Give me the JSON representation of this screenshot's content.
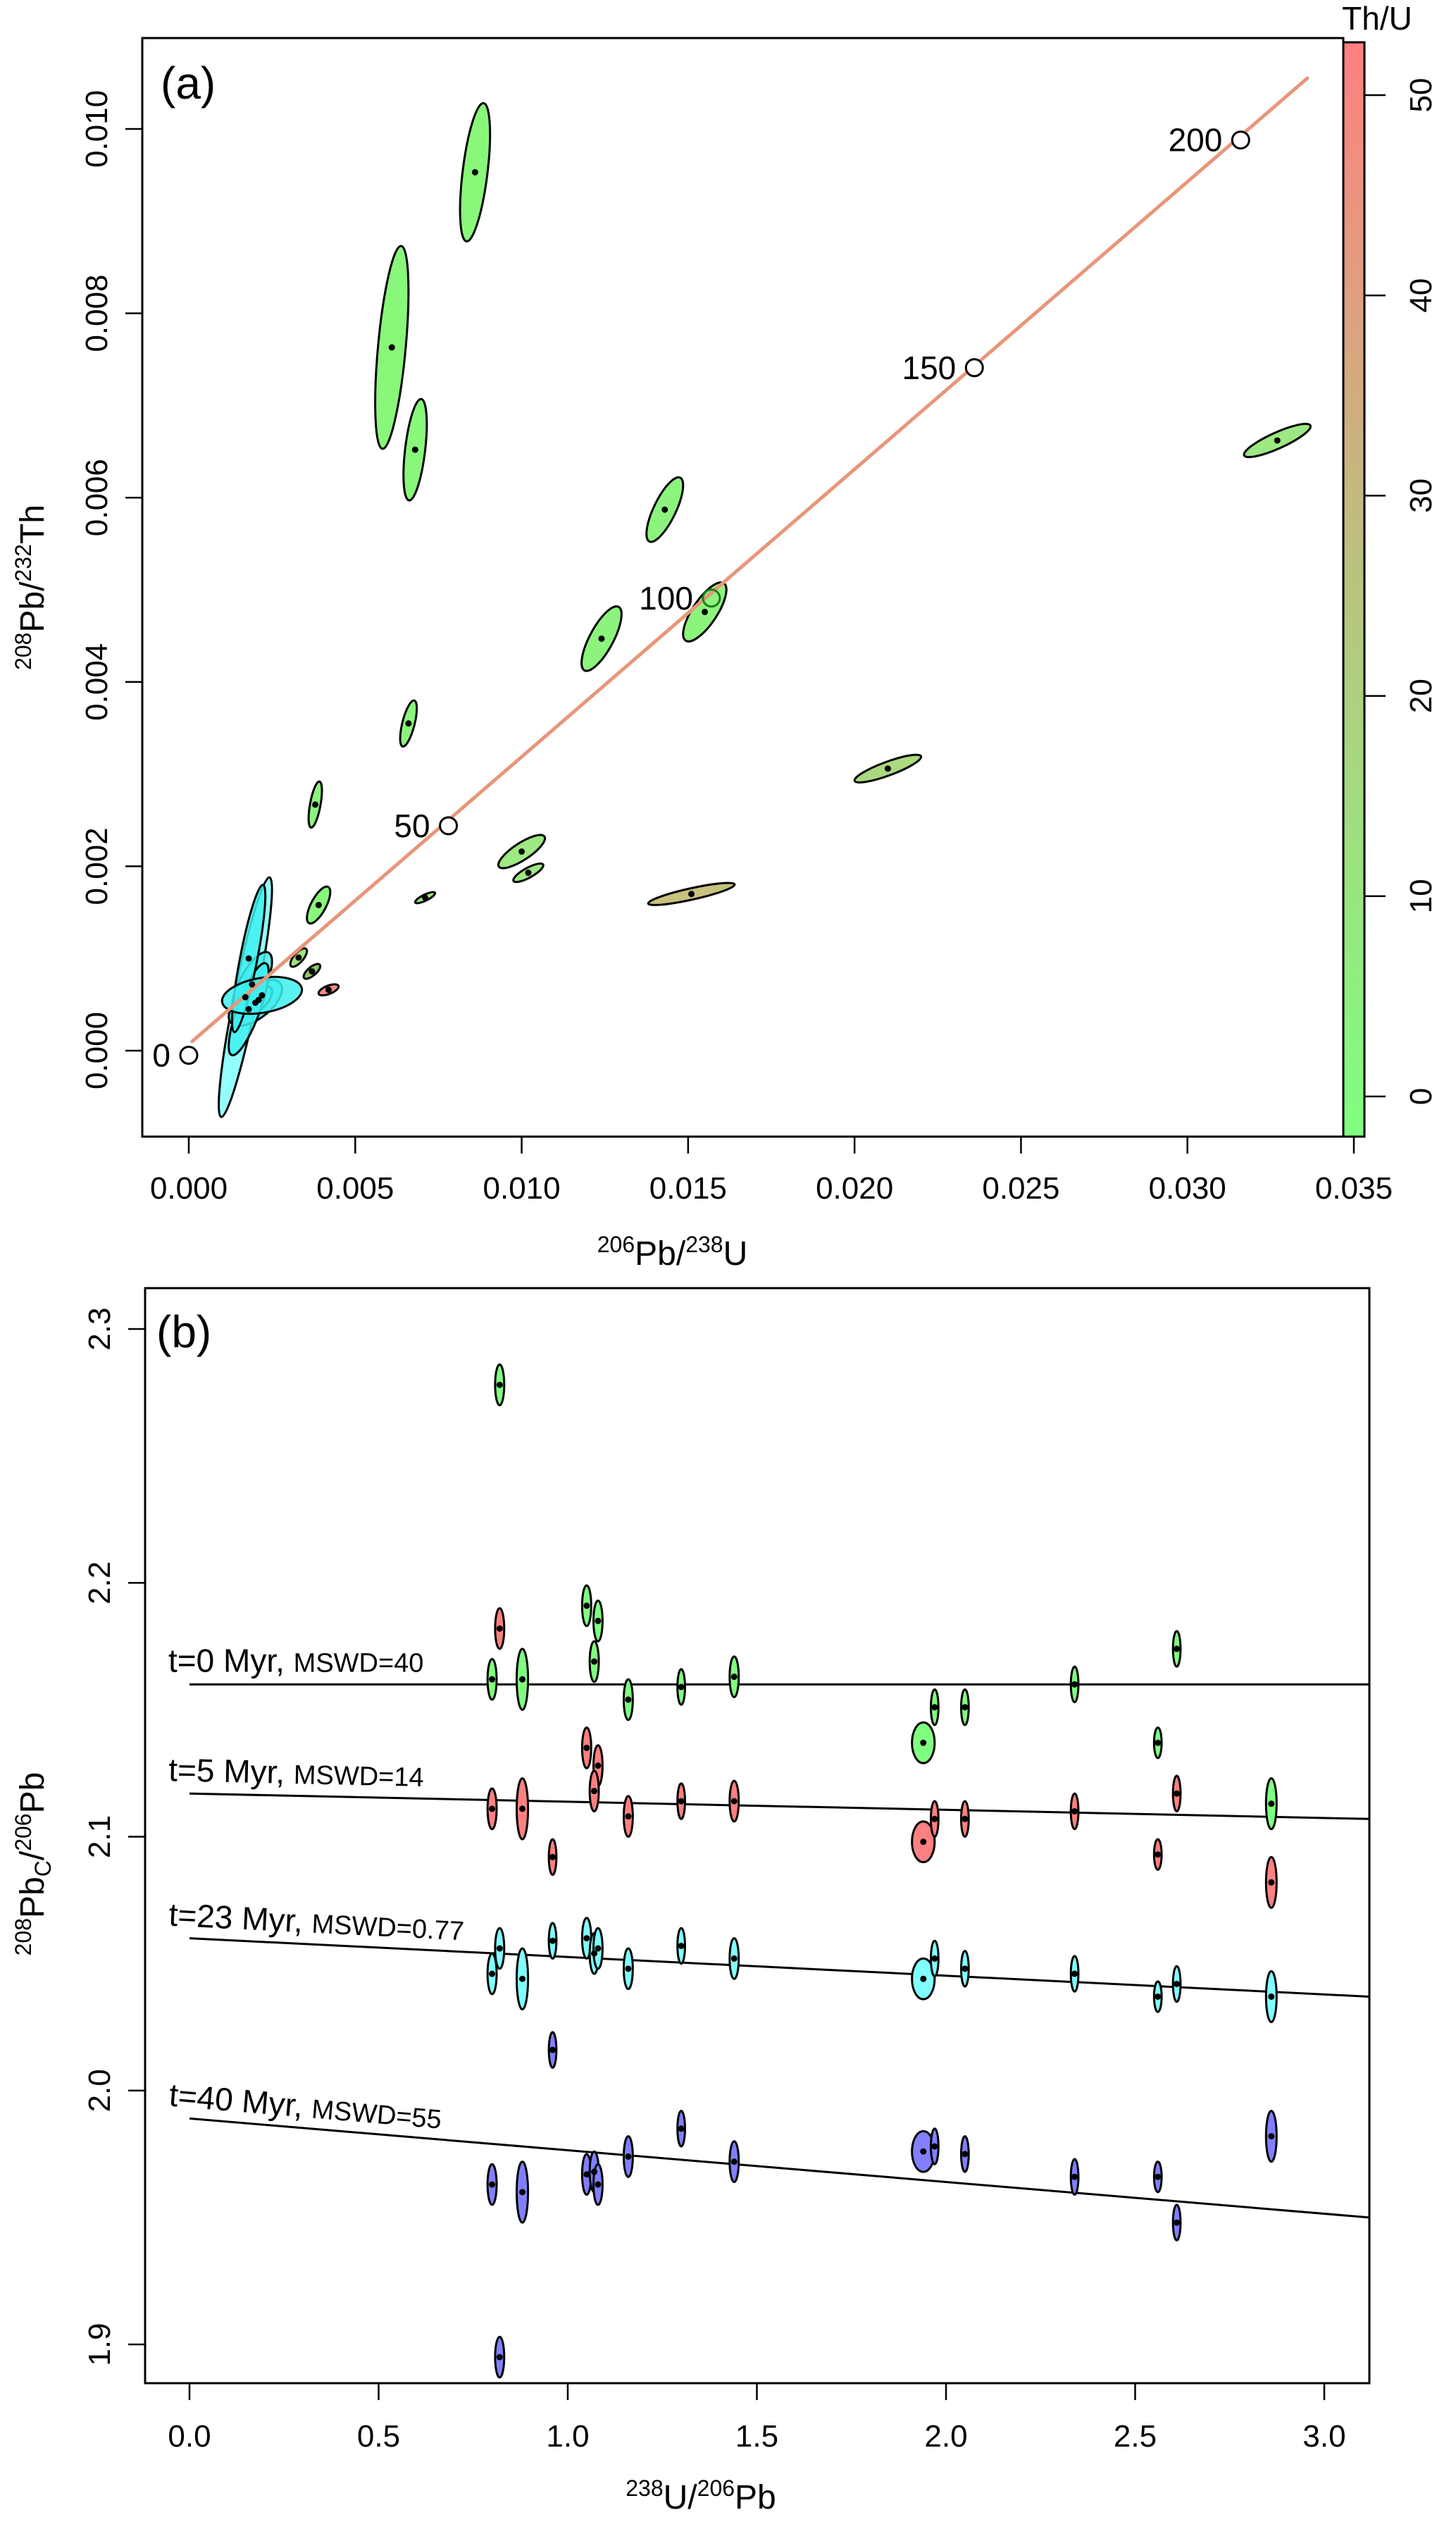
{
  "chart_data": [
    {
      "panel": "a",
      "type": "scatter",
      "panel_label": "(a)",
      "xlabel": {
        "sup1": "206",
        "base1": "Pb/",
        "sup2": "238",
        "base2": "U"
      },
      "ylabel": {
        "sup1": "208",
        "base1": "Pb/",
        "sup2": "232",
        "base2": "Th"
      },
      "xlim": [
        -0.0013,
        0.0352
      ],
      "ylim": [
        -0.0008,
        0.0109
      ],
      "xticks": [
        0.0,
        0.005,
        0.01,
        0.015,
        0.02,
        0.025,
        0.03,
        0.035
      ],
      "xtick_labels": [
        "0.000",
        "0.005",
        "0.010",
        "0.015",
        "0.020",
        "0.025",
        "0.030",
        "0.035"
      ],
      "yticks": [
        0.0,
        0.002,
        0.004,
        0.006,
        0.008,
        0.01
      ],
      "ytick_labels": [
        "0.000",
        "0.002",
        "0.004",
        "0.006",
        "0.008",
        "0.010"
      ],
      "concordia": {
        "color": "#E8967A",
        "x_range": [
          0.0001,
          0.0336
        ],
        "y_range": [
          0.0001,
          0.01055
        ],
        "age_markers": [
          {
            "label": "0",
            "x": 0.0,
            "y": -5e-05
          },
          {
            "label": "50",
            "x": 0.0078,
            "y": 0.00244
          },
          {
            "label": "100",
            "x": 0.0157,
            "y": 0.00491
          },
          {
            "label": "150",
            "x": 0.0236,
            "y": 0.00741
          },
          {
            "label": "200",
            "x": 0.0316,
            "y": 0.00988
          }
        ]
      },
      "colorbar": {
        "title": "Th/U",
        "range": [
          -2,
          52
        ],
        "ticks": [
          0,
          10,
          20,
          30,
          40,
          50
        ],
        "tick_labels": [
          "0",
          "10",
          "20",
          "30",
          "40",
          "50"
        ],
        "color_low": "#80FF80",
        "color_high": "#FF8080"
      },
      "points": [
        {
          "x": 0.0086,
          "y": 0.00953,
          "sx": 0.00045,
          "sy": 0.00075,
          "rho": 0.55,
          "fill": "#88F77A"
        },
        {
          "x": 0.0061,
          "y": 0.00763,
          "sx": 0.0005,
          "sy": 0.0011,
          "rho": 0.55,
          "fill": "#88F77A"
        },
        {
          "x": 0.0068,
          "y": 0.00652,
          "sx": 0.00035,
          "sy": 0.00055,
          "rho": 0.5,
          "fill": "#88F77A"
        },
        {
          "x": 0.0143,
          "y": 0.00587,
          "sx": 0.00055,
          "sy": 0.00035,
          "rho": 0.75,
          "fill": "#8CF47D"
        },
        {
          "x": 0.0124,
          "y": 0.00447,
          "sx": 0.0006,
          "sy": 0.00035,
          "rho": 0.75,
          "fill": "#8CF47D"
        },
        {
          "x": 0.0155,
          "y": 0.00476,
          "sx": 0.00065,
          "sy": 0.00032,
          "rho": 0.75,
          "fill": "#8CF47D"
        },
        {
          "x": 0.0066,
          "y": 0.00355,
          "sx": 0.00025,
          "sy": 0.00025,
          "rho": 0.65,
          "fill": "#8CF47D"
        },
        {
          "x": 0.0038,
          "y": 0.00267,
          "sx": 0.0002,
          "sy": 0.00025,
          "rho": 0.6,
          "fill": "#8CF47D"
        },
        {
          "x": 0.01,
          "y": 0.00216,
          "sx": 0.0007,
          "sy": 0.00018,
          "rho": 0.8,
          "fill": "#9CE882"
        },
        {
          "x": 0.0102,
          "y": 0.00193,
          "sx": 0.00045,
          "sy": 0.0001,
          "rho": 0.8,
          "fill": "#9CE882"
        },
        {
          "x": 0.021,
          "y": 0.00306,
          "sx": 0.001,
          "sy": 0.00015,
          "rho": 0.85,
          "fill": "#ABD97E"
        },
        {
          "x": 0.0151,
          "y": 0.0017,
          "sx": 0.0013,
          "sy": 0.00012,
          "rho": 0.85,
          "fill": "#C8C27E"
        },
        {
          "x": 0.0327,
          "y": 0.00662,
          "sx": 0.001,
          "sy": 0.00018,
          "rho": 0.85,
          "fill": "#9CE882"
        },
        {
          "x": 0.0071,
          "y": 0.00166,
          "sx": 0.0003,
          "sy": 6e-05,
          "rho": 0.8,
          "fill": "#9CE882"
        },
        {
          "x": 0.0039,
          "y": 0.00158,
          "sx": 0.00035,
          "sy": 0.0002,
          "rho": 0.7,
          "fill": "#88F77A"
        },
        {
          "x": 0.0033,
          "y": 0.00101,
          "sx": 0.00025,
          "sy": 0.0001,
          "rho": 0.7,
          "fill": "#A3DF7E"
        },
        {
          "x": 0.0037,
          "y": 0.00086,
          "sx": 0.00025,
          "sy": 8e-05,
          "rho": 0.7,
          "fill": "#88C86A"
        },
        {
          "x": 0.0042,
          "y": 0.00066,
          "sx": 0.0003,
          "sy": 6e-05,
          "rho": 0.6,
          "fill": "#F88B85"
        },
        {
          "x": 0.0017,
          "y": 0.00058,
          "sx": 0.0008,
          "sy": 0.0013,
          "rho": 0.9,
          "fill": "#80FFFF"
        },
        {
          "x": 0.0019,
          "y": 0.00072,
          "sx": 0.0006,
          "sy": 0.00035,
          "rho": 0.7,
          "fill": "#40F0F0"
        },
        {
          "x": 0.002,
          "y": 0.00052,
          "sx": 0.0008,
          "sy": 0.00025,
          "rho": 0.6,
          "fill": "#40F0F0"
        },
        {
          "x": 0.0021,
          "y": 0.00055,
          "sx": 0.0004,
          "sy": 0.00015,
          "rho": 0.6,
          "fill": "#40F0F0"
        },
        {
          "x": 0.0018,
          "y": 0.00045,
          "sx": 0.0006,
          "sy": 0.0005,
          "rho": 0.8,
          "fill": "#40F0F0"
        },
        {
          "x": 0.0018,
          "y": 0.001,
          "sx": 0.0005,
          "sy": 0.0008,
          "rho": 0.85,
          "fill": "#40F0F0"
        },
        {
          "x": 0.0022,
          "y": 0.0006,
          "sx": 0.0012,
          "sy": 0.0002,
          "rho": 0.3,
          "fill": "#40F0F0"
        }
      ]
    },
    {
      "panel": "b",
      "type": "scatter",
      "panel_label": "(b)",
      "xlabel": {
        "sup1": "238",
        "base1": "U/",
        "sup2": "206",
        "base2": "Pb"
      },
      "ylabel": {
        "sup1": "208",
        "base1": "Pb",
        "sub1": "C",
        "base2": "/",
        "sup2": "206",
        "base3": "Pb"
      },
      "xlim": [
        -0.07,
        3.11
      ],
      "ylim": [
        1.885,
        2.315
      ],
      "xticks": [
        0.0,
        0.5,
        1.0,
        1.5,
        2.0,
        2.5,
        3.0
      ],
      "xtick_labels": [
        "0.0",
        "0.5",
        "1.0",
        "1.5",
        "2.0",
        "2.5",
        "3.0"
      ],
      "yticks": [
        1.9,
        2.0,
        2.1,
        2.2,
        2.3
      ],
      "ytick_labels": [
        "1.9",
        "2.0",
        "2.1",
        "2.2",
        "2.3"
      ],
      "regressions": [
        {
          "label_main": "t=0 Myr, ",
          "label_small": "MSWD=40",
          "age_myr": 0,
          "mswd": 40,
          "intercept": 2.16,
          "y_at_end": 2.16,
          "color": "#80FF80"
        },
        {
          "label_main": "t=5 Myr, ",
          "label_small": "MSWD=14",
          "age_myr": 5,
          "mswd": 14,
          "intercept": 2.117,
          "y_at_end": 2.107,
          "color": "#FF8080"
        },
        {
          "label_main": "t=23 Myr, ",
          "label_small": "MSWD=0.77",
          "age_myr": 23,
          "mswd": 0.77,
          "intercept": 2.06,
          "y_at_end": 2.037,
          "color": "#80FFFF"
        },
        {
          "label_main": "t=40 Myr, ",
          "label_small": "MSWD=55",
          "age_myr": 40,
          "mswd": 55,
          "intercept": 1.989,
          "y_at_end": 1.95,
          "color": "#8080FF"
        }
      ],
      "series": [
        {
          "name": "t=0 Myr",
          "fill": "#80FF80",
          "points": [
            {
              "x": 0.82,
              "y": 2.278,
              "sx": 0.012,
              "sy": 0.008,
              "rho": 0
            },
            {
              "x": 0.8,
              "y": 2.162,
              "sx": 0.012,
              "sy": 0.008,
              "rho": 0
            },
            {
              "x": 0.88,
              "y": 2.162,
              "sx": 0.015,
              "sy": 0.012,
              "rho": 0
            },
            {
              "x": 1.05,
              "y": 2.191,
              "sx": 0.012,
              "sy": 0.008,
              "rho": 0
            },
            {
              "x": 1.08,
              "y": 2.185,
              "sx": 0.012,
              "sy": 0.008,
              "rho": 0
            },
            {
              "x": 1.07,
              "y": 2.169,
              "sx": 0.012,
              "sy": 0.008,
              "rho": 0
            },
            {
              "x": 1.16,
              "y": 2.154,
              "sx": 0.012,
              "sy": 0.008,
              "rho": 0
            },
            {
              "x": 1.3,
              "y": 2.159,
              "sx": 0.01,
              "sy": 0.007,
              "rho": 0
            },
            {
              "x": 1.44,
              "y": 2.163,
              "sx": 0.012,
              "sy": 0.008,
              "rho": 0
            },
            {
              "x": 1.94,
              "y": 2.137,
              "sx": 0.03,
              "sy": 0.008,
              "rho": 0
            },
            {
              "x": 1.97,
              "y": 2.151,
              "sx": 0.01,
              "sy": 0.007,
              "rho": 0
            },
            {
              "x": 2.05,
              "y": 2.151,
              "sx": 0.01,
              "sy": 0.007,
              "rho": 0
            },
            {
              "x": 2.34,
              "y": 2.16,
              "sx": 0.01,
              "sy": 0.007,
              "rho": 0
            },
            {
              "x": 2.56,
              "y": 2.137,
              "sx": 0.01,
              "sy": 0.006,
              "rho": 0
            },
            {
              "x": 2.61,
              "y": 2.174,
              "sx": 0.01,
              "sy": 0.007,
              "rho": 0
            },
            {
              "x": 2.86,
              "y": 2.113,
              "sx": 0.014,
              "sy": 0.01,
              "rho": 0
            }
          ]
        },
        {
          "name": "t=5 Myr",
          "fill": "#FF8080",
          "points": [
            {
              "x": 0.82,
              "y": 2.182,
              "sx": 0.012,
              "sy": 0.008,
              "rho": 0
            },
            {
              "x": 0.8,
              "y": 2.111,
              "sx": 0.012,
              "sy": 0.008,
              "rho": 0
            },
            {
              "x": 0.88,
              "y": 2.111,
              "sx": 0.015,
              "sy": 0.012,
              "rho": 0
            },
            {
              "x": 0.96,
              "y": 2.092,
              "sx": 0.01,
              "sy": 0.007,
              "rho": 0
            },
            {
              "x": 1.05,
              "y": 2.135,
              "sx": 0.012,
              "sy": 0.008,
              "rho": 0
            },
            {
              "x": 1.08,
              "y": 2.128,
              "sx": 0.012,
              "sy": 0.008,
              "rho": 0
            },
            {
              "x": 1.07,
              "y": 2.118,
              "sx": 0.012,
              "sy": 0.008,
              "rho": 0
            },
            {
              "x": 1.16,
              "y": 2.108,
              "sx": 0.012,
              "sy": 0.008,
              "rho": 0
            },
            {
              "x": 1.3,
              "y": 2.114,
              "sx": 0.01,
              "sy": 0.007,
              "rho": 0
            },
            {
              "x": 1.44,
              "y": 2.114,
              "sx": 0.012,
              "sy": 0.008,
              "rho": 0
            },
            {
              "x": 1.94,
              "y": 2.098,
              "sx": 0.03,
              "sy": 0.008,
              "rho": 0
            },
            {
              "x": 1.97,
              "y": 2.107,
              "sx": 0.01,
              "sy": 0.007,
              "rho": 0
            },
            {
              "x": 2.05,
              "y": 2.107,
              "sx": 0.01,
              "sy": 0.007,
              "rho": 0
            },
            {
              "x": 2.34,
              "y": 2.11,
              "sx": 0.01,
              "sy": 0.007,
              "rho": 0
            },
            {
              "x": 2.56,
              "y": 2.093,
              "sx": 0.01,
              "sy": 0.006,
              "rho": 0
            },
            {
              "x": 2.61,
              "y": 2.117,
              "sx": 0.01,
              "sy": 0.007,
              "rho": 0
            },
            {
              "x": 2.86,
              "y": 2.082,
              "sx": 0.014,
              "sy": 0.01,
              "rho": 0
            }
          ]
        },
        {
          "name": "t=23 Myr",
          "fill": "#80FFFF",
          "points": [
            {
              "x": 0.82,
              "y": 2.056,
              "sx": 0.012,
              "sy": 0.008,
              "rho": 0
            },
            {
              "x": 0.8,
              "y": 2.046,
              "sx": 0.012,
              "sy": 0.008,
              "rho": 0
            },
            {
              "x": 0.88,
              "y": 2.044,
              "sx": 0.015,
              "sy": 0.012,
              "rho": 0
            },
            {
              "x": 0.96,
              "y": 2.059,
              "sx": 0.01,
              "sy": 0.007,
              "rho": 0
            },
            {
              "x": 0.96,
              "y": 2.016,
              "sx": 0.01,
              "sy": 0.007,
              "rho": 0,
              "fill": "#8080FF"
            },
            {
              "x": 1.05,
              "y": 2.06,
              "sx": 0.012,
              "sy": 0.008,
              "rho": 0
            },
            {
              "x": 1.07,
              "y": 2.054,
              "sx": 0.012,
              "sy": 0.008,
              "rho": 0
            },
            {
              "x": 1.08,
              "y": 2.056,
              "sx": 0.012,
              "sy": 0.008,
              "rho": 0
            },
            {
              "x": 1.16,
              "y": 2.048,
              "sx": 0.012,
              "sy": 0.008,
              "rho": 0
            },
            {
              "x": 1.3,
              "y": 2.057,
              "sx": 0.01,
              "sy": 0.007,
              "rho": 0
            },
            {
              "x": 1.44,
              "y": 2.052,
              "sx": 0.012,
              "sy": 0.008,
              "rho": 0
            },
            {
              "x": 1.94,
              "y": 2.044,
              "sx": 0.03,
              "sy": 0.008,
              "rho": 0
            },
            {
              "x": 1.97,
              "y": 2.052,
              "sx": 0.01,
              "sy": 0.007,
              "rho": 0
            },
            {
              "x": 2.05,
              "y": 2.048,
              "sx": 0.01,
              "sy": 0.007,
              "rho": 0
            },
            {
              "x": 2.34,
              "y": 2.046,
              "sx": 0.01,
              "sy": 0.007,
              "rho": 0
            },
            {
              "x": 2.56,
              "y": 2.037,
              "sx": 0.01,
              "sy": 0.006,
              "rho": 0
            },
            {
              "x": 2.61,
              "y": 2.042,
              "sx": 0.01,
              "sy": 0.007,
              "rho": 0
            },
            {
              "x": 2.86,
              "y": 2.037,
              "sx": 0.014,
              "sy": 0.01,
              "rho": 0
            }
          ]
        },
        {
          "name": "t=40 Myr",
          "fill": "#8080FF",
          "points": [
            {
              "x": 0.82,
              "y": 1.895,
              "sx": 0.012,
              "sy": 0.008,
              "rho": 0
            },
            {
              "x": 0.8,
              "y": 1.963,
              "sx": 0.012,
              "sy": 0.008,
              "rho": 0
            },
            {
              "x": 0.88,
              "y": 1.96,
              "sx": 0.015,
              "sy": 0.012,
              "rho": 0
            },
            {
              "x": 1.05,
              "y": 1.967,
              "sx": 0.012,
              "sy": 0.008,
              "rho": 0
            },
            {
              "x": 1.07,
              "y": 1.968,
              "sx": 0.012,
              "sy": 0.008,
              "rho": 0
            },
            {
              "x": 1.08,
              "y": 1.963,
              "sx": 0.012,
              "sy": 0.008,
              "rho": 0
            },
            {
              "x": 1.16,
              "y": 1.974,
              "sx": 0.012,
              "sy": 0.008,
              "rho": 0
            },
            {
              "x": 1.3,
              "y": 1.985,
              "sx": 0.01,
              "sy": 0.007,
              "rho": 0
            },
            {
              "x": 1.44,
              "y": 1.972,
              "sx": 0.012,
              "sy": 0.008,
              "rho": 0
            },
            {
              "x": 1.94,
              "y": 1.976,
              "sx": 0.03,
              "sy": 0.008,
              "rho": 0
            },
            {
              "x": 1.97,
              "y": 1.978,
              "sx": 0.01,
              "sy": 0.007,
              "rho": 0
            },
            {
              "x": 2.05,
              "y": 1.975,
              "sx": 0.01,
              "sy": 0.007,
              "rho": 0
            },
            {
              "x": 2.34,
              "y": 1.966,
              "sx": 0.01,
              "sy": 0.007,
              "rho": 0
            },
            {
              "x": 2.56,
              "y": 1.966,
              "sx": 0.01,
              "sy": 0.006,
              "rho": 0
            },
            {
              "x": 2.61,
              "y": 1.948,
              "sx": 0.01,
              "sy": 0.007,
              "rho": 0
            },
            {
              "x": 2.86,
              "y": 1.982,
              "sx": 0.014,
              "sy": 0.01,
              "rho": 0
            }
          ]
        }
      ]
    }
  ]
}
